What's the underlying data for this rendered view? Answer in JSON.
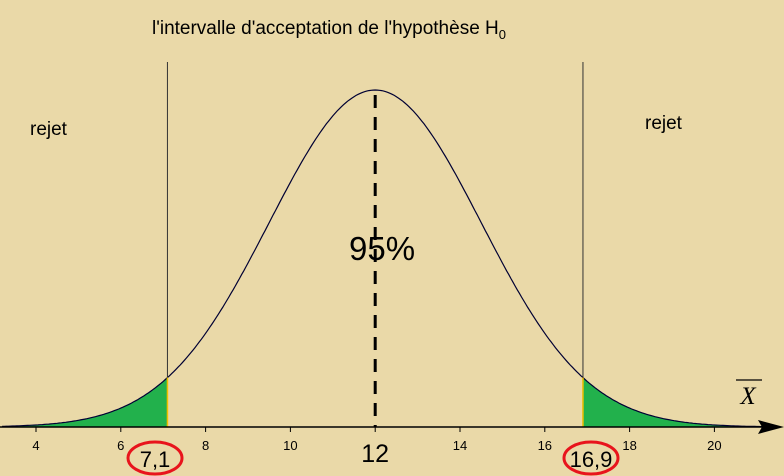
{
  "title": {
    "text": "l'intervalle d'acceptation de l'hypothèse H",
    "subscript": "0"
  },
  "labels": {
    "reject_left": "rejet",
    "reject_right": "rejet",
    "acceptance_percent": "95%",
    "axis_variable": "X"
  },
  "plot": {
    "mean": 12,
    "sigma": 2.5,
    "x_range": [
      3.2,
      21.5
    ],
    "ticks": [
      4,
      6,
      8,
      10,
      12,
      14,
      16,
      18,
      20
    ],
    "mean_label": "12",
    "lower_bound": 7.1,
    "upper_bound": 16.9,
    "lower_label": "7,1",
    "upper_label": "16,9"
  },
  "colors": {
    "background": "#ead9a8",
    "rejection_fill": "#22b14c",
    "bound_circle": "#e8141c",
    "curve": "#000033"
  }
}
